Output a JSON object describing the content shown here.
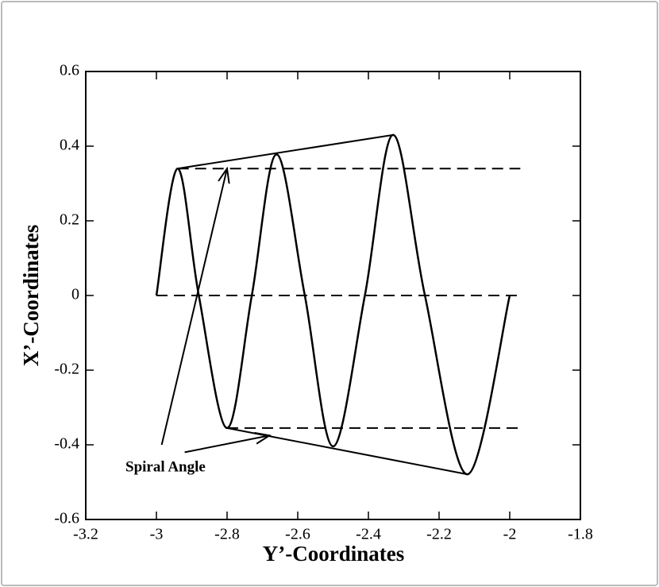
{
  "chart_data": {
    "type": "line",
    "xlabel": "Y’-Coordinates",
    "ylabel": "X’-Coordinates",
    "xlim": [
      -3.2,
      -1.8
    ],
    "ylim": [
      -0.6,
      0.6
    ],
    "xticks": [
      -3.2,
      -3,
      -2.8,
      -2.6,
      -2.4,
      -2.2,
      -2,
      -1.8
    ],
    "yticks": [
      -0.6,
      -0.4,
      -0.2,
      0,
      0.2,
      0.4,
      0.6
    ],
    "color": "#000000",
    "series": [
      {
        "x": [
          -3.0,
          -2.94,
          -2.88,
          -2.8,
          -2.73,
          -2.66,
          -2.58,
          -2.5,
          -2.41,
          -2.33,
          -2.24,
          -2.12,
          -2.0
        ],
        "values": [
          0.0,
          0.34,
          0.0,
          -0.355,
          0.0,
          0.378,
          0.0,
          -0.404,
          0.0,
          0.43,
          0.0,
          -0.479,
          0.0
        ]
      }
    ],
    "lines": [
      {
        "x": [
          -2.94,
          -2.33
        ],
        "values": [
          0.34,
          0.43
        ],
        "dashed": false
      },
      {
        "x": [
          -2.8,
          -2.12
        ],
        "values": [
          -0.355,
          -0.479
        ],
        "dashed": false
      },
      {
        "x": [
          -2.94,
          -1.97
        ],
        "values": [
          0.34,
          0.34
        ],
        "dashed": true
      },
      {
        "x": [
          -3.0,
          -1.97
        ],
        "values": [
          0.0,
          0.0
        ],
        "dashed": true
      },
      {
        "x": [
          -2.8,
          -1.97
        ],
        "values": [
          -0.355,
          -0.355
        ],
        "dashed": true
      }
    ],
    "arrows": [
      {
        "x": [
          -2.985,
          -2.8
        ],
        "values": [
          -0.4,
          0.34
        ]
      },
      {
        "x": [
          -2.92,
          -2.68
        ],
        "values": [
          -0.42,
          -0.375
        ]
      }
    ],
    "annotation": "Spiral Angle"
  }
}
